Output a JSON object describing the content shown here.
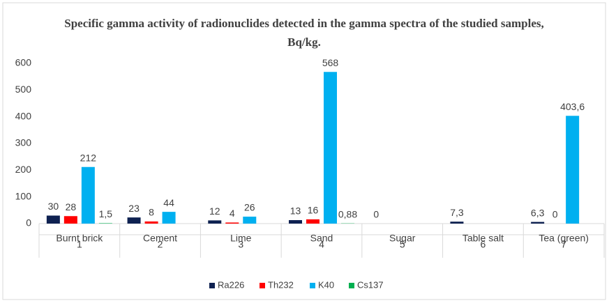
{
  "chart_data": {
    "type": "bar",
    "title": "Specific gamma activity of radionuclides detected in the gamma spectra of the studied samples, Bq/kg.",
    "categories": [
      "Burnt brick",
      "Cement",
      "Lime",
      "Sand",
      "Sugar",
      "Table salt",
      "Tea (green)"
    ],
    "category_numbers": [
      1,
      2,
      3,
      4,
      5,
      6,
      7
    ],
    "series": [
      {
        "name": "Ra226",
        "color": "#0e2151",
        "values": [
          30,
          23,
          12,
          13,
          0,
          7.3,
          6.3
        ],
        "value_labels": [
          "30",
          "23",
          "12",
          "13",
          "0",
          "7,3",
          "6,3"
        ]
      },
      {
        "name": "Th232",
        "color": "#ff0000",
        "values": [
          28,
          8,
          4,
          16,
          null,
          null,
          0
        ],
        "value_labels": [
          "28",
          "8",
          "4",
          "16",
          null,
          null,
          "0"
        ]
      },
      {
        "name": "K40",
        "color": "#00b0f0",
        "values": [
          212,
          44,
          26,
          568,
          null,
          null,
          403.6
        ],
        "value_labels": [
          "212",
          "44",
          "26",
          "568",
          null,
          null,
          "403,6"
        ]
      },
      {
        "name": "Cs137",
        "color": "#00b050",
        "values": [
          1.5,
          null,
          null,
          0.88,
          null,
          null,
          null
        ],
        "value_labels": [
          "1,5",
          null,
          null,
          "0,88",
          null,
          null,
          null
        ]
      }
    ],
    "ylim": [
      0,
      600
    ],
    "yticks": [
      0,
      100,
      200,
      300,
      400,
      500,
      600
    ],
    "grid": false,
    "legend": "bottom"
  }
}
